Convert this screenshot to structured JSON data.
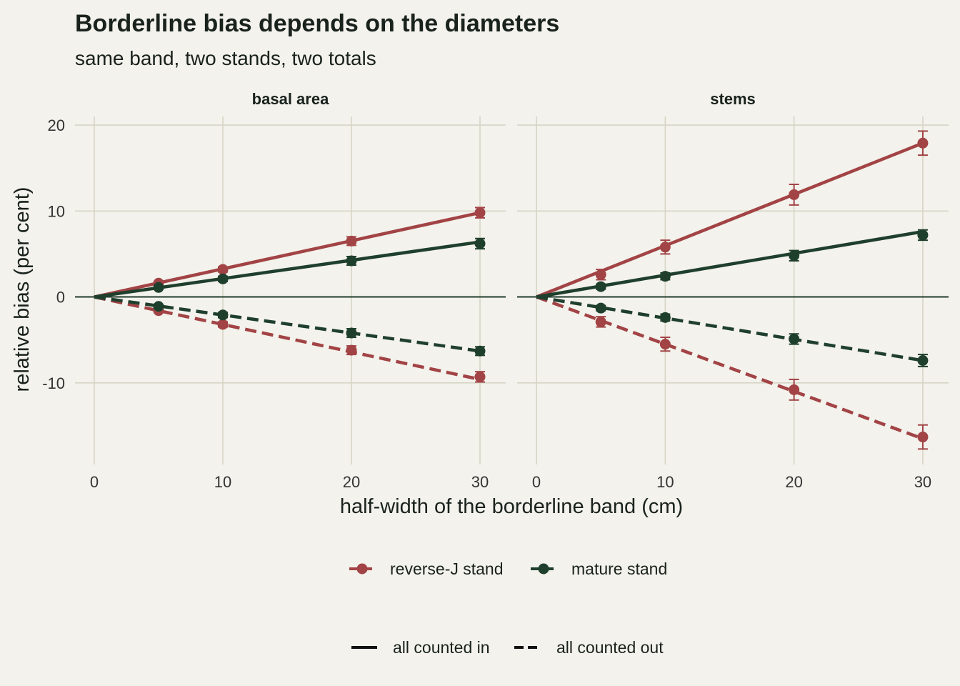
{
  "title": "Borderline bias depends on the diameters",
  "subtitle": "same band, two stands, two totals",
  "xlabel": "half-width of the borderline band (cm)",
  "ylabel": "relative bias (per cent)",
  "colors": {
    "background": "#f3f2ec",
    "grid": "#d6d5c6",
    "zero_line": "#1f3a2c",
    "reverse_j": "#a24345",
    "mature": "#1f3f2d",
    "text": "#1a221d"
  },
  "legend_stand": [
    {
      "label": "reverse-J stand",
      "color": "#a24345"
    },
    {
      "label": "mature stand",
      "color": "#1f3f2d"
    }
  ],
  "legend_rule": [
    {
      "label": "all counted in",
      "dash": "solid"
    },
    {
      "label": "all counted out",
      "dash": "dashed"
    }
  ],
  "chart_data": {
    "type": "line",
    "x_ticks": [
      0,
      10,
      20,
      30
    ],
    "y_ticks": [
      -10,
      0,
      10,
      20
    ],
    "xlim": [
      -1.5,
      32
    ],
    "ylim": [
      -19.5,
      21
    ],
    "panels": [
      {
        "title": "basal area",
        "series": [
          {
            "stand": "reverse-J stand",
            "rule": "all counted in",
            "line_x": [
              0,
              30
            ],
            "line_y": [
              0,
              9.8
            ],
            "points": [
              {
                "x": 5,
                "y": 1.6,
                "lo": 1.4,
                "hi": 1.8
              },
              {
                "x": 10,
                "y": 3.2,
                "lo": 2.9,
                "hi": 3.5
              },
              {
                "x": 20,
                "y": 6.5,
                "lo": 6.0,
                "hi": 7.0
              },
              {
                "x": 30,
                "y": 9.8,
                "lo": 9.2,
                "hi": 10.4
              }
            ]
          },
          {
            "stand": "mature stand",
            "rule": "all counted in",
            "line_x": [
              0,
              30
            ],
            "line_y": [
              0,
              6.4
            ],
            "points": [
              {
                "x": 5,
                "y": 1.1,
                "lo": 0.9,
                "hi": 1.3
              },
              {
                "x": 10,
                "y": 2.1,
                "lo": 1.8,
                "hi": 2.4
              },
              {
                "x": 20,
                "y": 4.2,
                "lo": 3.7,
                "hi": 4.7
              },
              {
                "x": 30,
                "y": 6.2,
                "lo": 5.6,
                "hi": 6.8
              }
            ]
          },
          {
            "stand": "reverse-J stand",
            "rule": "all counted out",
            "line_x": [
              0,
              30
            ],
            "line_y": [
              0,
              -9.6
            ],
            "points": [
              {
                "x": 5,
                "y": -1.6,
                "lo": -1.8,
                "hi": -1.4
              },
              {
                "x": 10,
                "y": -3.2,
                "lo": -3.5,
                "hi": -2.9
              },
              {
                "x": 20,
                "y": -6.2,
                "lo": -6.7,
                "hi": -5.7
              },
              {
                "x": 30,
                "y": -9.3,
                "lo": -9.9,
                "hi": -8.7
              }
            ]
          },
          {
            "stand": "mature stand",
            "rule": "all counted out",
            "line_x": [
              0,
              30
            ],
            "line_y": [
              0,
              -6.3
            ],
            "points": [
              {
                "x": 5,
                "y": -1.1,
                "lo": -1.3,
                "hi": -0.9
              },
              {
                "x": 10,
                "y": -2.1,
                "lo": -2.4,
                "hi": -1.8
              },
              {
                "x": 20,
                "y": -4.2,
                "lo": -4.7,
                "hi": -3.7
              },
              {
                "x": 30,
                "y": -6.3,
                "lo": -6.8,
                "hi": -5.8
              }
            ]
          }
        ]
      },
      {
        "title": "stems",
        "series": [
          {
            "stand": "reverse-J stand",
            "rule": "all counted in",
            "line_x": [
              0,
              30
            ],
            "line_y": [
              0,
              17.9
            ],
            "points": [
              {
                "x": 5,
                "y": 2.6,
                "lo": 2.0,
                "hi": 3.2
              },
              {
                "x": 10,
                "y": 5.8,
                "lo": 5.0,
                "hi": 6.6
              },
              {
                "x": 20,
                "y": 11.9,
                "lo": 10.7,
                "hi": 13.1
              },
              {
                "x": 30,
                "y": 17.9,
                "lo": 16.5,
                "hi": 19.3
              }
            ]
          },
          {
            "stand": "mature stand",
            "rule": "all counted in",
            "line_x": [
              0,
              30
            ],
            "line_y": [
              0,
              7.6
            ],
            "points": [
              {
                "x": 5,
                "y": 1.2,
                "lo": 0.9,
                "hi": 1.5
              },
              {
                "x": 10,
                "y": 2.4,
                "lo": 2.0,
                "hi": 2.8
              },
              {
                "x": 20,
                "y": 4.8,
                "lo": 4.2,
                "hi": 5.4
              },
              {
                "x": 30,
                "y": 7.2,
                "lo": 6.6,
                "hi": 7.8
              }
            ]
          },
          {
            "stand": "reverse-J stand",
            "rule": "all counted out",
            "line_x": [
              0,
              30
            ],
            "line_y": [
              0,
              -16.5
            ],
            "points": [
              {
                "x": 5,
                "y": -2.9,
                "lo": -3.5,
                "hi": -2.3
              },
              {
                "x": 10,
                "y": -5.5,
                "lo": -6.3,
                "hi": -4.7
              },
              {
                "x": 20,
                "y": -10.8,
                "lo": -12.0,
                "hi": -9.6
              },
              {
                "x": 30,
                "y": -16.3,
                "lo": -17.7,
                "hi": -14.9
              }
            ]
          },
          {
            "stand": "mature stand",
            "rule": "all counted out",
            "line_x": [
              0,
              30
            ],
            "line_y": [
              0,
              -7.4
            ],
            "points": [
              {
                "x": 5,
                "y": -1.3,
                "lo": -1.6,
                "hi": -1.0
              },
              {
                "x": 10,
                "y": -2.4,
                "lo": -2.8,
                "hi": -2.0
              },
              {
                "x": 20,
                "y": -4.9,
                "lo": -5.5,
                "hi": -4.3
              },
              {
                "x": 30,
                "y": -7.4,
                "lo": -8.1,
                "hi": -6.7
              }
            ]
          }
        ]
      }
    ]
  }
}
